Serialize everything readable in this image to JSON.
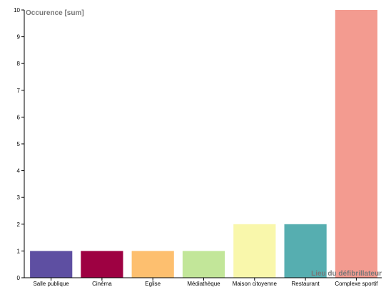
{
  "chart_data": {
    "type": "bar",
    "xlabel": "Lieu du défibrillateur",
    "ylabel": "Occurence [sum]",
    "categories": [
      "Salle publique",
      "Cinéma",
      "Eglise",
      "Médiathèque",
      "Maison citoyenne",
      "Restaurant",
      "Complexe sportif"
    ],
    "values": [
      1,
      1,
      1,
      1,
      2,
      2,
      10
    ],
    "colors": [
      "#5e4fa2",
      "#9e0142",
      "#fdbf6f",
      "#c2e699",
      "#f9f7ab",
      "#56aeb0",
      "#f39b90"
    ],
    "ylim": [
      0,
      10
    ],
    "yticks": [
      0,
      1,
      2,
      3,
      4,
      5,
      6,
      7,
      8,
      9,
      10
    ],
    "grid": false,
    "legend": "none"
  }
}
